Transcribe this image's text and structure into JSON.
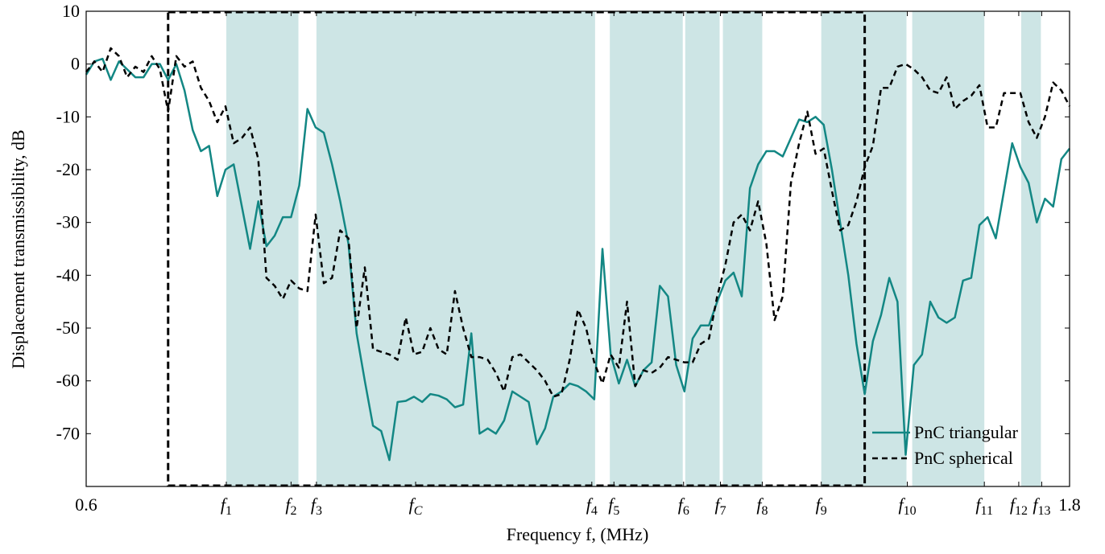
{
  "chart_data": {
    "type": "line",
    "xlabel": "Frequency f, (MHz)",
    "ylabel": "Displacement transmissibility, dB",
    "xlim": [
      0.6,
      1.8
    ],
    "ylim": [
      -80,
      10
    ],
    "yticks": [
      10,
      0,
      -10,
      -20,
      -30,
      -40,
      -50,
      -60,
      -70
    ],
    "xticks": [
      0.6,
      {
        "value": 0.771,
        "label": "f1"
      },
      {
        "value": 0.85,
        "label": "f2"
      },
      {
        "value": 0.881,
        "label": "f3"
      },
      {
        "value": 1.002,
        "label": "fC"
      },
      {
        "value": 1.217,
        "label": "f4"
      },
      {
        "value": 1.244,
        "label": "f5"
      },
      {
        "value": 1.329,
        "label": "f6"
      },
      {
        "value": 1.374,
        "label": "f7"
      },
      {
        "value": 1.425,
        "label": "f8"
      },
      {
        "value": 1.497,
        "label": "f9"
      },
      {
        "value": 1.602,
        "label": "f10"
      },
      {
        "value": 1.696,
        "label": "f11"
      },
      {
        "value": 1.738,
        "label": "f12"
      },
      {
        "value": 1.766,
        "label": "f13"
      },
      1.8
    ],
    "bands": [
      [
        0.771,
        0.859
      ],
      [
        0.881,
        1.221
      ],
      [
        1.239,
        1.328
      ],
      [
        1.331,
        1.373
      ],
      [
        1.377,
        1.425
      ],
      [
        1.497,
        1.601
      ],
      [
        1.608,
        1.696
      ],
      [
        1.741,
        1.765
      ]
    ],
    "band_color": "#cde5e5",
    "window": [
      0.7,
      1.55
    ],
    "legend": "lower right",
    "x": [
      0.6,
      0.61,
      0.62,
      0.63,
      0.64,
      0.65,
      0.66,
      0.67,
      0.68,
      0.69,
      0.7,
      0.71,
      0.72,
      0.73,
      0.74,
      0.75,
      0.76,
      0.77,
      0.78,
      0.79,
      0.8,
      0.81,
      0.82,
      0.83,
      0.84,
      0.85,
      0.86,
      0.87,
      0.88,
      0.89,
      0.9,
      0.91,
      0.92,
      0.93,
      0.94,
      0.95,
      0.96,
      0.97,
      0.98,
      0.99,
      1.0,
      1.01,
      1.02,
      1.03,
      1.04,
      1.05,
      1.06,
      1.07,
      1.08,
      1.09,
      1.1,
      1.11,
      1.12,
      1.13,
      1.14,
      1.15,
      1.16,
      1.17,
      1.18,
      1.19,
      1.2,
      1.21,
      1.22,
      1.23,
      1.24,
      1.25,
      1.26,
      1.27,
      1.28,
      1.29,
      1.3,
      1.31,
      1.32,
      1.33,
      1.34,
      1.35,
      1.36,
      1.37,
      1.38,
      1.39,
      1.4,
      1.41,
      1.42,
      1.43,
      1.44,
      1.45,
      1.46,
      1.47,
      1.48,
      1.49,
      1.5,
      1.51,
      1.52,
      1.53,
      1.54,
      1.55,
      1.56,
      1.57,
      1.58,
      1.59,
      1.6,
      1.61,
      1.62,
      1.63,
      1.64,
      1.65,
      1.66,
      1.67,
      1.68,
      1.69,
      1.7,
      1.71,
      1.72,
      1.73,
      1.74,
      1.75,
      1.76,
      1.77,
      1.78,
      1.79,
      1.8
    ],
    "series": [
      {
        "name": "PnC triangular",
        "color": "#138784",
        "dash": false,
        "values": [
          -2,
          0.5,
          1,
          -3,
          0.5,
          -1,
          -2.5,
          -2.5,
          0,
          0,
          -3,
          0,
          -5,
          -12.5,
          -16.5,
          -15.5,
          -25,
          -20,
          -19,
          -27,
          -35,
          -26,
          -34.5,
          -32.5,
          -29,
          -29,
          -23,
          -8.5,
          -12,
          -13,
          -19,
          -26,
          -34,
          -51,
          -60,
          -68.5,
          -69.5,
          -75,
          -64,
          -63.8,
          -63,
          -64,
          -62.5,
          -62.8,
          -63.5,
          -65,
          -64.5,
          -51,
          -70,
          -69,
          -70,
          -67.5,
          -62,
          -63,
          -64,
          -72,
          -69,
          -63,
          -62,
          -60.5,
          -61,
          -62,
          -63.5,
          -35,
          -55,
          -60.5,
          -56,
          -61,
          -58,
          -56.5,
          -42,
          -44,
          -57,
          -62,
          -52,
          -49.5,
          -49.5,
          -45,
          -41,
          -39.5,
          -44,
          -23.5,
          -19,
          -16.5,
          -16.5,
          -17.5,
          -14,
          -10.5,
          -11,
          -10,
          -11.5,
          -20,
          -30,
          -40,
          -53,
          -62.5,
          -52.5,
          -47.5,
          -40.5,
          -45,
          -74,
          -57,
          -55,
          -45,
          -48,
          -49,
          -48,
          -41,
          -40.5,
          -30.5,
          -29,
          -33,
          -24,
          -15,
          -19.5,
          -22.5,
          -30,
          -25.5,
          -27,
          -18,
          -16
        ]
      },
      {
        "name": "PnC spherical",
        "color": "#000000",
        "dash": true,
        "values": [
          -1.5,
          0.5,
          -1.5,
          3,
          1.5,
          -2.5,
          -0.5,
          -1.5,
          1.5,
          -1,
          -9,
          1.5,
          -0.5,
          0.5,
          -4.5,
          -7,
          -11,
          -8,
          -15,
          -14,
          -12,
          -18,
          -40.5,
          -42,
          -44.5,
          -41,
          -42.5,
          -43,
          -28.5,
          -41.5,
          -40.5,
          -31.5,
          -33,
          -50,
          -38.5,
          -54,
          -54.5,
          -55,
          -56,
          -48,
          -55,
          -54.5,
          -50,
          -54,
          -55,
          -43,
          -50,
          -55.5,
          -55.5,
          -56,
          -58.5,
          -62,
          -55.5,
          -55,
          -56.5,
          -58,
          -60,
          -63,
          -62.5,
          -56,
          -46.5,
          -50,
          -56.5,
          -60.5,
          -55,
          -57.5,
          -45,
          -61,
          -58,
          -58.5,
          -57.5,
          -55.5,
          -56,
          -56.5,
          -56.5,
          -53,
          -52,
          -44,
          -38,
          -30,
          -28.5,
          -31.5,
          -26,
          -34,
          -48.5,
          -44,
          -22.5,
          -15,
          -9,
          -17,
          -16,
          -24,
          -31.5,
          -30.5,
          -26,
          -19.5,
          -15.5,
          -4.5,
          -4.5,
          -0.5,
          0,
          -1,
          -2.5,
          -5,
          -5.5,
          -2.5,
          -8.5,
          -7,
          -6,
          -4,
          -12,
          -12,
          -5.5,
          -5.5,
          -5.5,
          -11,
          -14,
          -10,
          -3.5,
          -5,
          -8
        ]
      }
    ]
  }
}
